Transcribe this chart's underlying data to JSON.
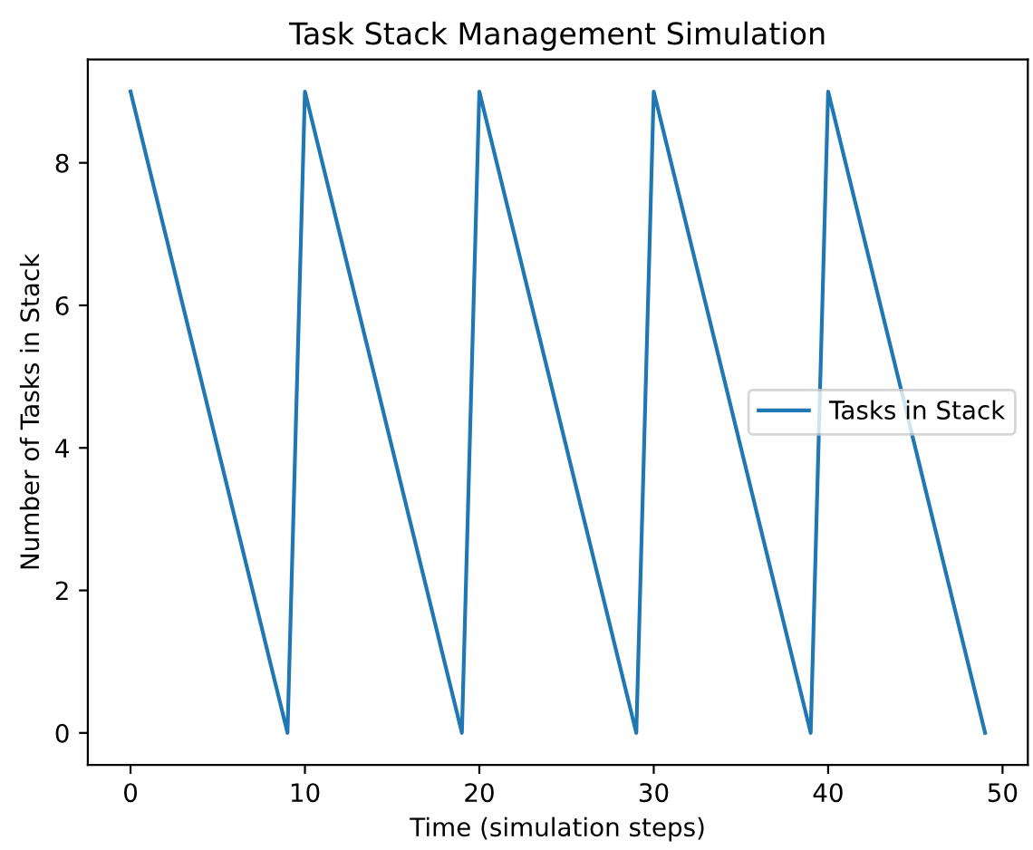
{
  "chart_data": {
    "type": "line",
    "title": "Task Stack Management Simulation",
    "xlabel": "Time (simulation steps)",
    "ylabel": "Number of Tasks in Stack",
    "x": [
      0,
      1,
      2,
      3,
      4,
      5,
      6,
      7,
      8,
      9,
      10,
      11,
      12,
      13,
      14,
      15,
      16,
      17,
      18,
      19,
      20,
      21,
      22,
      23,
      24,
      25,
      26,
      27,
      28,
      29,
      30,
      31,
      32,
      33,
      34,
      35,
      36,
      37,
      38,
      39,
      40,
      41,
      42,
      43,
      44,
      45,
      46,
      47,
      48,
      49
    ],
    "series": [
      {
        "name": "Tasks in Stack",
        "color": "#1f77b4",
        "values": [
          9,
          8,
          7,
          6,
          5,
          4,
          3,
          2,
          1,
          0,
          9,
          8,
          7,
          6,
          5,
          4,
          3,
          2,
          1,
          0,
          9,
          8,
          7,
          6,
          5,
          4,
          3,
          2,
          1,
          0,
          9,
          8,
          7,
          6,
          5,
          4,
          3,
          2,
          1,
          0,
          9,
          8,
          7,
          6,
          5,
          4,
          3,
          2,
          1,
          0
        ]
      }
    ],
    "xlim": [
      -2.45,
      51.45
    ],
    "ylim": [
      -0.45,
      9.45
    ],
    "xticks": [
      0,
      10,
      20,
      30,
      40,
      50
    ],
    "yticks": [
      0,
      2,
      4,
      6,
      8
    ],
    "legend": "center right",
    "grid": false,
    "marker": "none",
    "line_style": "solid"
  }
}
